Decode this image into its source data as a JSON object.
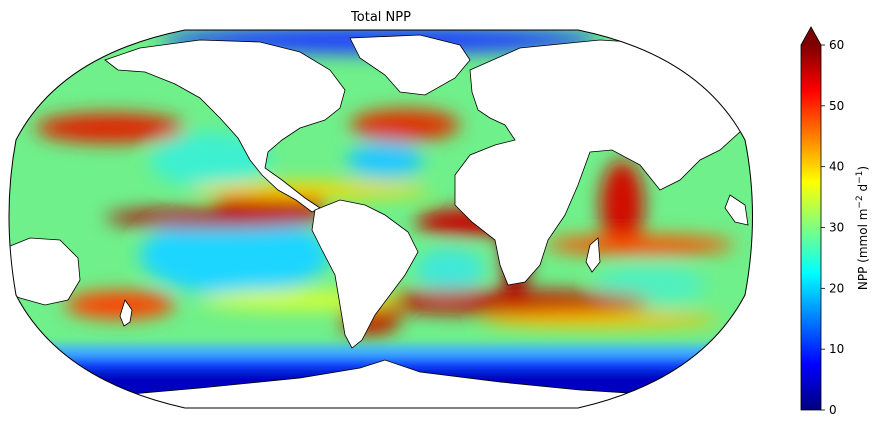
{
  "figure": {
    "title": "Total NPP",
    "projection": "robinson"
  },
  "colorbar": {
    "label_main": "NPP (mmol m",
    "label_exp1": "−2",
    "label_mid": " d",
    "label_exp2": "−1",
    "label_close": ")",
    "min": 0,
    "max": 60,
    "extend": "max",
    "ticks": [
      "0",
      "10",
      "20",
      "30",
      "40",
      "50",
      "60"
    ],
    "colormap": "jet",
    "colors": [
      "#00007f",
      "#0000ff",
      "#007fff",
      "#00ffff",
      "#7fff7f",
      "#ffff00",
      "#ff7f00",
      "#ff0000",
      "#7f0000"
    ]
  },
  "map_colors": {
    "land": "#ffffff",
    "coast": "#000000"
  }
}
